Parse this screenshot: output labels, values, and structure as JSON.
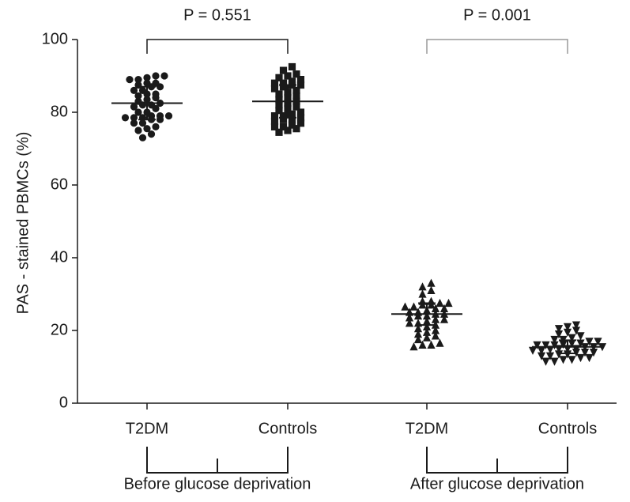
{
  "chart_data": {
    "type": "dot-plot",
    "ylabel": "PAS - stained PBMCs (%)",
    "ylim": [
      0,
      100
    ],
    "yticks": [
      0,
      20,
      40,
      60,
      80,
      100
    ],
    "categories": [
      "T2DM",
      "Controls",
      "T2DM",
      "Controls"
    ],
    "group_labels": [
      "Before glucose deprivation",
      "After glucose deprivation"
    ],
    "color": "#1a1a1a",
    "groups": [
      {
        "marker": "circle",
        "mean": 82.5,
        "sd": 4.5,
        "values": [
          90,
          90,
          89.5,
          89,
          89,
          88,
          88,
          87.5,
          87,
          87,
          86,
          86,
          85,
          85,
          84.5,
          84,
          83.5,
          83,
          82.5,
          82,
          82,
          81.5,
          81,
          80,
          80,
          79,
          79,
          79,
          78.5,
          78.5,
          78.5,
          78,
          78,
          77,
          77,
          76,
          75.5,
          75,
          74,
          73
        ]
      },
      {
        "marker": "square",
        "mean": 83,
        "sd": 4.5,
        "values": [
          92.5,
          91.5,
          90.5,
          90,
          89.5,
          89,
          88.5,
          88,
          88,
          87.5,
          87.5,
          87,
          86.5,
          86,
          85.5,
          85,
          84.5,
          84,
          83.5,
          83,
          82.5,
          82,
          81.5,
          81,
          80.5,
          80,
          79.5,
          79,
          79,
          78.5,
          78,
          78,
          77.5,
          77,
          76.5,
          76,
          76,
          75.5,
          75,
          74.5
        ]
      },
      {
        "marker": "triangle-up",
        "mean": 24.5,
        "sd": 3,
        "values": [
          33,
          32,
          31,
          30,
          28,
          28,
          27.5,
          27.5,
          27,
          27,
          26.5,
          26.5,
          26,
          26,
          25.5,
          25,
          25,
          24.5,
          24.5,
          24,
          24,
          23.5,
          23,
          23,
          22.5,
          22,
          22,
          21.5,
          21,
          20.5,
          20,
          19.5,
          19,
          18.5,
          18,
          17.5,
          16.5,
          16,
          16,
          15.5
        ]
      },
      {
        "marker": "triangle-down",
        "mean": 15.5,
        "sd": 1.8,
        "values": [
          21.5,
          21,
          20.5,
          20,
          19.5,
          19,
          18.5,
          18,
          17.5,
          17.5,
          17,
          17,
          16.5,
          16.5,
          16,
          16,
          16,
          15.5,
          15.5,
          15.5,
          15,
          15,
          15,
          14.5,
          14.5,
          14,
          14,
          14,
          13.5,
          13.5,
          13,
          13,
          12.5,
          12.5,
          12,
          12,
          11.5,
          11.5,
          14.8,
          16.2
        ]
      }
    ],
    "comparisons": [
      {
        "label": "P = 0.551",
        "pair": [
          0,
          1
        ],
        "color": "#1a1a1a"
      },
      {
        "label": "P = 0.001",
        "pair": [
          2,
          3
        ],
        "color": "#9a9a9a"
      }
    ]
  }
}
